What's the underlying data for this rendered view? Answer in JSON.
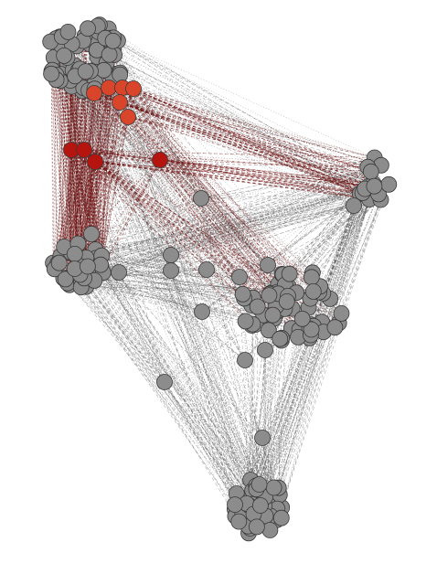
{
  "colors": {
    "background": "#ffffff",
    "node_gray": "#8c8c8c",
    "node_stroke": "#3a3a3a",
    "node_red_dark": "#b5140f",
    "node_red_light": "#d9452b",
    "edge_gray": "#555555",
    "edge_red": "#6e1010"
  },
  "legend": null,
  "title": ""
}
